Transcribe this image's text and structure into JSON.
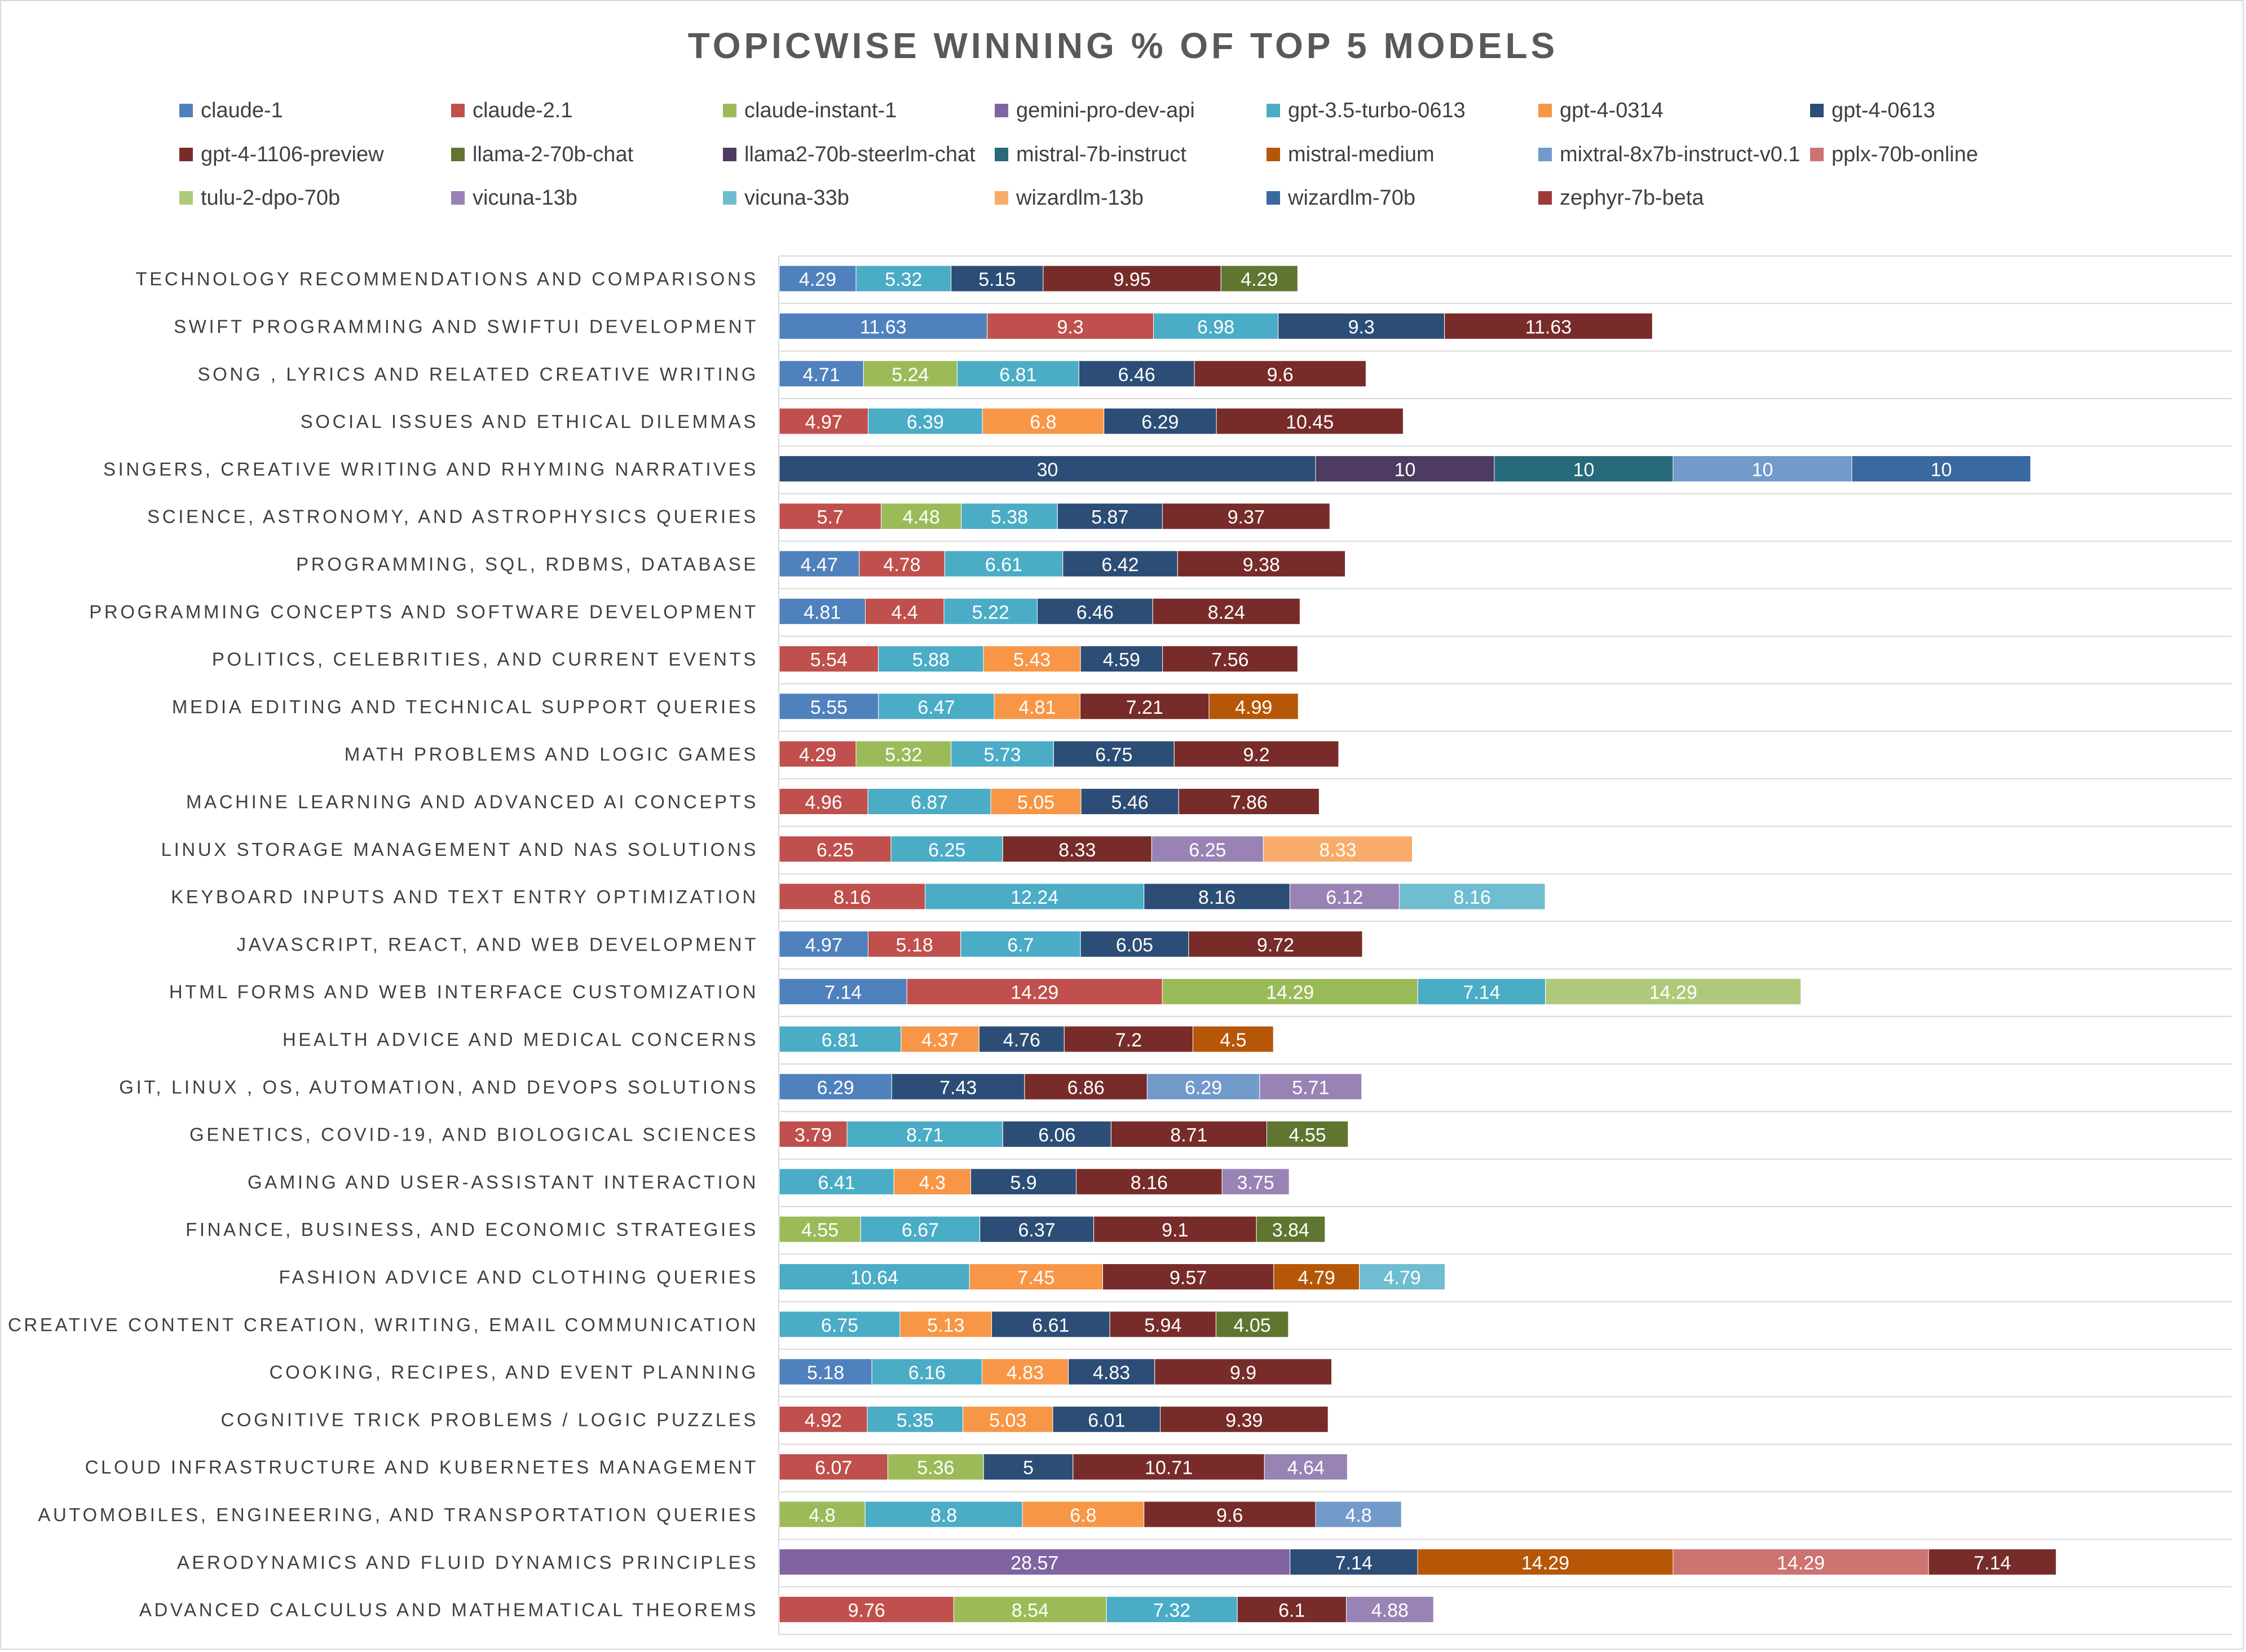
{
  "chart_data": {
    "type": "bar",
    "orientation": "horizontal",
    "stacked": true,
    "title": "TOPICWISE WINNING % OF TOP 5 MODELS",
    "xlabel": "",
    "ylabel": "",
    "xlim": [
      0,
      75
    ],
    "grid": "horizontal-row-lines",
    "legend": "top",
    "series_colors": {
      "claude-1": "#4f81bd",
      "claude-2.1": "#c0504d",
      "claude-instant-1": "#9bbb59",
      "gemini-pro-dev-api": "#8064a2",
      "gpt-3.5-turbo-0613": "#4bacc6",
      "gpt-4-0314": "#f79646",
      "gpt-4-0613": "#2c4d75",
      "gpt-4-1106-preview": "#772c2a",
      "llama-2-70b-chat": "#5f7530",
      "llama2-70b-steerlm-chat": "#4d3b62",
      "mistral-7b-instruct": "#276a7c",
      "mistral-medium": "#b65708",
      "mixtral-8x7b-instruct-v0.1": "#729aca",
      "pplx-70b-online": "#cd7371",
      "tulu-2-dpo-70b": "#afc97a",
      "vicuna-13b": "#9983b5",
      "vicuna-33b": "#6fbdd1",
      "wizardlm-13b": "#f9ab6b",
      "wizardlm-70b": "#3a68a0",
      "zephyr-7b-beta": "#9e3a38"
    },
    "legend_entries": [
      "claude-1",
      "claude-2.1",
      "claude-instant-1",
      "gemini-pro-dev-api",
      "gpt-3.5-turbo-0613",
      "gpt-4-0314",
      "gpt-4-0613",
      "gpt-4-1106-preview",
      "llama-2-70b-chat",
      "llama2-70b-steerlm-chat",
      "mistral-7b-instruct",
      "mistral-medium",
      "mixtral-8x7b-instruct-v0.1",
      "pplx-70b-online",
      "tulu-2-dpo-70b",
      "vicuna-13b",
      "vicuna-33b",
      "wizardlm-13b",
      "wizardlm-70b",
      "zephyr-7b-beta"
    ],
    "categories": [
      {
        "label": "TECHNOLOGY RECOMMENDATIONS AND COMPARISONS",
        "segments": [
          [
            "claude-1",
            4.29
          ],
          [
            "gpt-3.5-turbo-0613",
            5.32
          ],
          [
            "gpt-4-0613",
            5.15
          ],
          [
            "gpt-4-1106-preview",
            9.95
          ],
          [
            "llama-2-70b-chat",
            4.29
          ]
        ]
      },
      {
        "label": "SWIFT PROGRAMMING AND SWIFTUI DEVELOPMENT",
        "segments": [
          [
            "claude-1",
            11.63
          ],
          [
            "claude-2.1",
            9.3
          ],
          [
            "gpt-3.5-turbo-0613",
            6.98
          ],
          [
            "gpt-4-0613",
            9.3
          ],
          [
            "gpt-4-1106-preview",
            11.63
          ]
        ]
      },
      {
        "label": "SONG , LYRICS AND RELATED CREATIVE WRITING",
        "segments": [
          [
            "claude-1",
            4.71
          ],
          [
            "claude-instant-1",
            5.24
          ],
          [
            "gpt-3.5-turbo-0613",
            6.81
          ],
          [
            "gpt-4-0613",
            6.46
          ],
          [
            "gpt-4-1106-preview",
            9.6
          ]
        ]
      },
      {
        "label": "SOCIAL ISSUES AND ETHICAL DILEMMAS",
        "segments": [
          [
            "claude-2.1",
            4.97
          ],
          [
            "gpt-3.5-turbo-0613",
            6.39
          ],
          [
            "gpt-4-0314",
            6.8
          ],
          [
            "gpt-4-0613",
            6.29
          ],
          [
            "gpt-4-1106-preview",
            10.45
          ]
        ]
      },
      {
        "label": "SINGERS, CREATIVE WRITING AND RHYMING NARRATIVES",
        "segments": [
          [
            "gpt-4-0613",
            30
          ],
          [
            "llama2-70b-steerlm-chat",
            10
          ],
          [
            "mistral-7b-instruct",
            10
          ],
          [
            "mixtral-8x7b-instruct-v0.1",
            10
          ],
          [
            "wizardlm-70b",
            10
          ]
        ]
      },
      {
        "label": "SCIENCE, ASTRONOMY, AND ASTROPHYSICS QUERIES",
        "segments": [
          [
            "claude-2.1",
            5.7
          ],
          [
            "claude-instant-1",
            4.48
          ],
          [
            "gpt-3.5-turbo-0613",
            5.38
          ],
          [
            "gpt-4-0613",
            5.87
          ],
          [
            "gpt-4-1106-preview",
            9.37
          ]
        ]
      },
      {
        "label": "PROGRAMMING, SQL, RDBMS, DATABASE",
        "segments": [
          [
            "claude-1",
            4.47
          ],
          [
            "claude-2.1",
            4.78
          ],
          [
            "gpt-3.5-turbo-0613",
            6.61
          ],
          [
            "gpt-4-0613",
            6.42
          ],
          [
            "gpt-4-1106-preview",
            9.38
          ]
        ]
      },
      {
        "label": "PROGRAMMING CONCEPTS AND SOFTWARE DEVELOPMENT",
        "segments": [
          [
            "claude-1",
            4.81
          ],
          [
            "claude-2.1",
            4.4
          ],
          [
            "gpt-3.5-turbo-0613",
            5.22
          ],
          [
            "gpt-4-0613",
            6.46
          ],
          [
            "gpt-4-1106-preview",
            8.24
          ]
        ]
      },
      {
        "label": "POLITICS, CELEBRITIES, AND CURRENT EVENTS",
        "segments": [
          [
            "claude-2.1",
            5.54
          ],
          [
            "gpt-3.5-turbo-0613",
            5.88
          ],
          [
            "gpt-4-0314",
            5.43
          ],
          [
            "gpt-4-0613",
            4.59
          ],
          [
            "gpt-4-1106-preview",
            7.56
          ]
        ]
      },
      {
        "label": "MEDIA EDITING AND TECHNICAL SUPPORT QUERIES",
        "segments": [
          [
            "claude-1",
            5.55
          ],
          [
            "gpt-3.5-turbo-0613",
            6.47
          ],
          [
            "gpt-4-0314",
            4.81
          ],
          [
            "gpt-4-1106-preview",
            7.21
          ],
          [
            "mistral-medium",
            4.99
          ]
        ]
      },
      {
        "label": "MATH PROBLEMS AND LOGIC GAMES",
        "segments": [
          [
            "claude-2.1",
            4.29
          ],
          [
            "claude-instant-1",
            5.32
          ],
          [
            "gpt-3.5-turbo-0613",
            5.73
          ],
          [
            "gpt-4-0613",
            6.75
          ],
          [
            "gpt-4-1106-preview",
            9.2
          ]
        ]
      },
      {
        "label": "MACHINE LEARNING AND ADVANCED AI CONCEPTS",
        "segments": [
          [
            "claude-2.1",
            4.96
          ],
          [
            "gpt-3.5-turbo-0613",
            6.87
          ],
          [
            "gpt-4-0314",
            5.05
          ],
          [
            "gpt-4-0613",
            5.46
          ],
          [
            "gpt-4-1106-preview",
            7.86
          ]
        ]
      },
      {
        "label": "LINUX STORAGE MANAGEMENT AND NAS SOLUTIONS",
        "segments": [
          [
            "claude-2.1",
            6.25
          ],
          [
            "gpt-3.5-turbo-0613",
            6.25
          ],
          [
            "gpt-4-1106-preview",
            8.33
          ],
          [
            "vicuna-13b",
            6.25
          ],
          [
            "wizardlm-13b",
            8.33
          ]
        ]
      },
      {
        "label": "KEYBOARD INPUTS AND TEXT ENTRY OPTIMIZATION",
        "segments": [
          [
            "claude-2.1",
            8.16
          ],
          [
            "gpt-3.5-turbo-0613",
            12.24
          ],
          [
            "gpt-4-0613",
            8.16
          ],
          [
            "vicuna-13b",
            6.12
          ],
          [
            "vicuna-33b",
            8.16
          ]
        ]
      },
      {
        "label": "JAVASCRIPT, REACT, AND WEB DEVELOPMENT",
        "segments": [
          [
            "claude-1",
            4.97
          ],
          [
            "claude-2.1",
            5.18
          ],
          [
            "gpt-3.5-turbo-0613",
            6.7
          ],
          [
            "gpt-4-0613",
            6.05
          ],
          [
            "gpt-4-1106-preview",
            9.72
          ]
        ]
      },
      {
        "label": "HTML FORMS AND WEB INTERFACE CUSTOMIZATION",
        "segments": [
          [
            "claude-1",
            7.14
          ],
          [
            "claude-2.1",
            14.29
          ],
          [
            "claude-instant-1",
            14.29
          ],
          [
            "gpt-3.5-turbo-0613",
            7.14
          ],
          [
            "tulu-2-dpo-70b",
            14.29
          ]
        ]
      },
      {
        "label": "HEALTH ADVICE AND MEDICAL CONCERNS",
        "segments": [
          [
            "gpt-3.5-turbo-0613",
            6.81
          ],
          [
            "gpt-4-0314",
            4.37
          ],
          [
            "gpt-4-0613",
            4.76
          ],
          [
            "gpt-4-1106-preview",
            7.2
          ],
          [
            "mistral-medium",
            4.5
          ]
        ]
      },
      {
        "label": "GIT, LINUX , OS,  AUTOMATION, AND DEVOPS SOLUTIONS",
        "segments": [
          [
            "claude-1",
            6.29
          ],
          [
            "gpt-4-0613",
            7.43
          ],
          [
            "gpt-4-1106-preview",
            6.86
          ],
          [
            "mixtral-8x7b-instruct-v0.1",
            6.29
          ],
          [
            "vicuna-13b",
            5.71
          ]
        ]
      },
      {
        "label": "GENETICS, COVID-19, AND BIOLOGICAL SCIENCES",
        "segments": [
          [
            "claude-2.1",
            3.79
          ],
          [
            "gpt-3.5-turbo-0613",
            8.71
          ],
          [
            "gpt-4-0613",
            6.06
          ],
          [
            "gpt-4-1106-preview",
            8.71
          ],
          [
            "llama-2-70b-chat",
            4.55
          ]
        ]
      },
      {
        "label": "GAMING AND USER-ASSISTANT INTERACTION",
        "segments": [
          [
            "gpt-3.5-turbo-0613",
            6.41
          ],
          [
            "gpt-4-0314",
            4.3
          ],
          [
            "gpt-4-0613",
            5.9
          ],
          [
            "gpt-4-1106-preview",
            8.16
          ],
          [
            "vicuna-13b",
            3.75
          ]
        ]
      },
      {
        "label": "FINANCE, BUSINESS, AND ECONOMIC STRATEGIES",
        "segments": [
          [
            "claude-instant-1",
            4.55
          ],
          [
            "gpt-3.5-turbo-0613",
            6.67
          ],
          [
            "gpt-4-0613",
            6.37
          ],
          [
            "gpt-4-1106-preview",
            9.1
          ],
          [
            "llama-2-70b-chat",
            3.84
          ]
        ]
      },
      {
        "label": "FASHION ADVICE AND CLOTHING QUERIES",
        "segments": [
          [
            "gpt-3.5-turbo-0613",
            10.64
          ],
          [
            "gpt-4-0314",
            7.45
          ],
          [
            "gpt-4-1106-preview",
            9.57
          ],
          [
            "mistral-medium",
            4.79
          ],
          [
            "vicuna-33b",
            4.79
          ]
        ]
      },
      {
        "label": "CREATIVE CONTENT CREATION, WRITING, EMAIL COMMUNICATION",
        "segments": [
          [
            "gpt-3.5-turbo-0613",
            6.75
          ],
          [
            "gpt-4-0314",
            5.13
          ],
          [
            "gpt-4-0613",
            6.61
          ],
          [
            "gpt-4-1106-preview",
            5.94
          ],
          [
            "llama-2-70b-chat",
            4.05
          ]
        ]
      },
      {
        "label": "COOKING, RECIPES, AND EVENT PLANNING",
        "segments": [
          [
            "claude-1",
            5.18
          ],
          [
            "gpt-3.5-turbo-0613",
            6.16
          ],
          [
            "gpt-4-0314",
            4.83
          ],
          [
            "gpt-4-0613",
            4.83
          ],
          [
            "gpt-4-1106-preview",
            9.9
          ]
        ]
      },
      {
        "label": "COGNITIVE TRICK PROBLEMS / LOGIC PUZZLES",
        "segments": [
          [
            "claude-2.1",
            4.92
          ],
          [
            "gpt-3.5-turbo-0613",
            5.35
          ],
          [
            "gpt-4-0314",
            5.03
          ],
          [
            "gpt-4-0613",
            6.01
          ],
          [
            "gpt-4-1106-preview",
            9.39
          ]
        ]
      },
      {
        "label": "CLOUD INFRASTRUCTURE AND KUBERNETES MANAGEMENT",
        "segments": [
          [
            "claude-2.1",
            6.07
          ],
          [
            "claude-instant-1",
            5.36
          ],
          [
            "gpt-4-0613",
            5
          ],
          [
            "gpt-4-1106-preview",
            10.71
          ],
          [
            "vicuna-13b",
            4.64
          ]
        ]
      },
      {
        "label": "AUTOMOBILES, ENGINEERING, AND TRANSPORTATION QUERIES",
        "segments": [
          [
            "claude-instant-1",
            4.8
          ],
          [
            "gpt-3.5-turbo-0613",
            8.8
          ],
          [
            "gpt-4-0314",
            6.8
          ],
          [
            "gpt-4-1106-preview",
            9.6
          ],
          [
            "mixtral-8x7b-instruct-v0.1",
            4.8
          ]
        ]
      },
      {
        "label": "AERODYNAMICS AND FLUID DYNAMICS PRINCIPLES",
        "segments": [
          [
            "gemini-pro-dev-api",
            28.57
          ],
          [
            "gpt-4-0613",
            7.14
          ],
          [
            "mistral-medium",
            14.29
          ],
          [
            "pplx-70b-online",
            14.29
          ],
          [
            "gpt-4-1106-preview",
            7.14
          ]
        ]
      },
      {
        "label": "ADVANCED CALCULUS AND MATHEMATICAL THEOREMS",
        "segments": [
          [
            "claude-2.1",
            9.76
          ],
          [
            "claude-instant-1",
            8.54
          ],
          [
            "gpt-3.5-turbo-0613",
            7.32
          ],
          [
            "gpt-4-1106-preview",
            6.1
          ],
          [
            "vicuna-13b",
            4.88
          ]
        ]
      }
    ]
  }
}
